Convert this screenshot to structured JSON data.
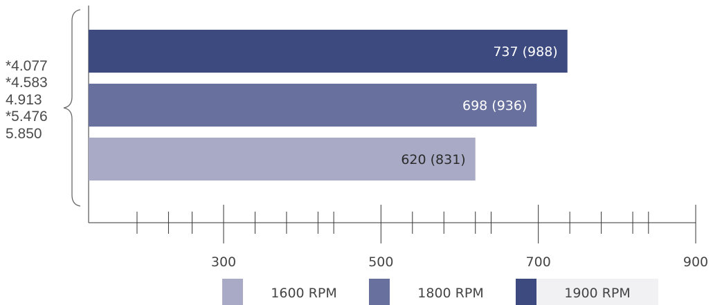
{
  "ratios": {
    "items": [
      "*4.077",
      "*4.583",
      "4.913",
      "*5.476",
      "5.850"
    ]
  },
  "chart_data": {
    "type": "bar",
    "orientation": "horizontal",
    "series": [
      {
        "name": "1900 RPM",
        "value": 737,
        "label": "737 (988)",
        "color": "#3d4a80",
        "label_color": "#ffffff"
      },
      {
        "name": "1800 RPM",
        "value": 698,
        "label": "698 (936)",
        "color": "#68709e",
        "label_color": "#ffffff"
      },
      {
        "name": "1600 RPM",
        "value": 620,
        "label": "620 (831)",
        "color": "#a9abc6",
        "label_color": "#2a2a2a"
      }
    ],
    "xlim": [
      100,
      900
    ],
    "major_ticks": [
      300,
      500,
      700,
      900
    ],
    "tick_labels": [
      "300",
      "500",
      "700",
      "900"
    ],
    "minor_ticks": [
      190,
      230,
      260,
      340,
      380,
      420,
      440,
      540,
      580,
      620,
      640,
      740,
      780,
      820,
      840
    ],
    "legend": [
      {
        "label": "1600 RPM",
        "color": "#a9abc6"
      },
      {
        "label": "1800 RPM",
        "color": "#68709e"
      },
      {
        "label": "1900 RPM",
        "color": "#3d4a80"
      }
    ],
    "legend_placement": "bottom",
    "grid": false
  }
}
